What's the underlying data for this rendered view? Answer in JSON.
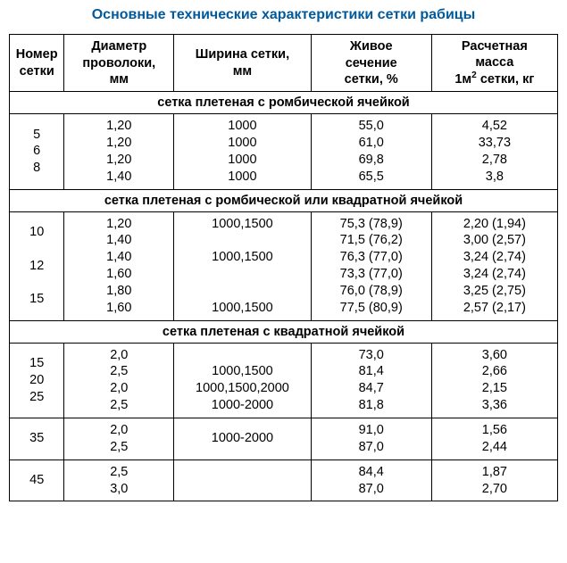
{
  "title": "Основные технические характеристики сетки рабицы",
  "headers": {
    "num": "Номер сетки",
    "diam_l1": "Диаметр",
    "diam_l2": "проволоки,",
    "diam_l3": "мм",
    "width_l1": "Ширина сетки,",
    "width_l2": "мм",
    "live_l1": "Живое",
    "live_l2": "сечение",
    "live_l3": "сетки, %",
    "mass_l1": "Расчетная",
    "mass_l2": "масса",
    "mass_l3_pre": "1м",
    "mass_l3_sup": "2",
    "mass_l3_post": " сетки, кг"
  },
  "section1": {
    "title": "сетка плетеная с ромбической ячейкой",
    "num_lines": "5\n6\n8",
    "diam_lines": "1,20\n1,20\n1,20\n1,40",
    "width_lines": "1000\n1000\n1000\n1000",
    "live_lines": "55,0\n61,0\n69,8\n65,5",
    "mass_lines": "4,52\n33,73\n2,78\n3,8"
  },
  "section2": {
    "title": "сетка плетеная с ромбической или квадратной ячейкой",
    "num_lines": "10\n\n12\n\n15",
    "diam_lines": "1,20\n1,40\n1,40\n1,60\n1,80\n1,60",
    "width_lines": "1000,1500\n\n1000,1500\n\n\n1000,1500",
    "live_lines": "75,3 (78,9)\n71,5 (76,2)\n76,3 (77,0)\n73,3 (77,0)\n76,0 (78,9)\n77,5 (80,9)",
    "mass_lines": "2,20 (1,94)\n3,00 (2,57)\n3,24 (2,74)\n3,24 (2,74)\n3,25 (2,75)\n2,57 (2,17)"
  },
  "section3": {
    "title": "сетка плетеная с квадратной ячейкой",
    "group1": {
      "num_lines": "15\n20\n25",
      "diam_lines": "2,0\n2,5\n2,0\n2,5",
      "width_lines": "\n1000,1500\n1000,1500,2000\n1000-2000",
      "live_lines": "73,0\n81,4\n84,7\n81,8",
      "mass_lines": "3,60\n2,66\n2,15\n3,36"
    },
    "group2": {
      "num": "35",
      "diam_lines": "2,0\n2,5",
      "width_lines": "1000-2000",
      "live_lines": "91,0\n87,0",
      "mass_lines": "1,56\n2,44"
    },
    "group3": {
      "num": "45",
      "diam_lines": "2,5\n3,0",
      "width_lines": "",
      "live_lines": "84,4\n87,0",
      "mass_lines": "1,87\n2,70"
    }
  }
}
